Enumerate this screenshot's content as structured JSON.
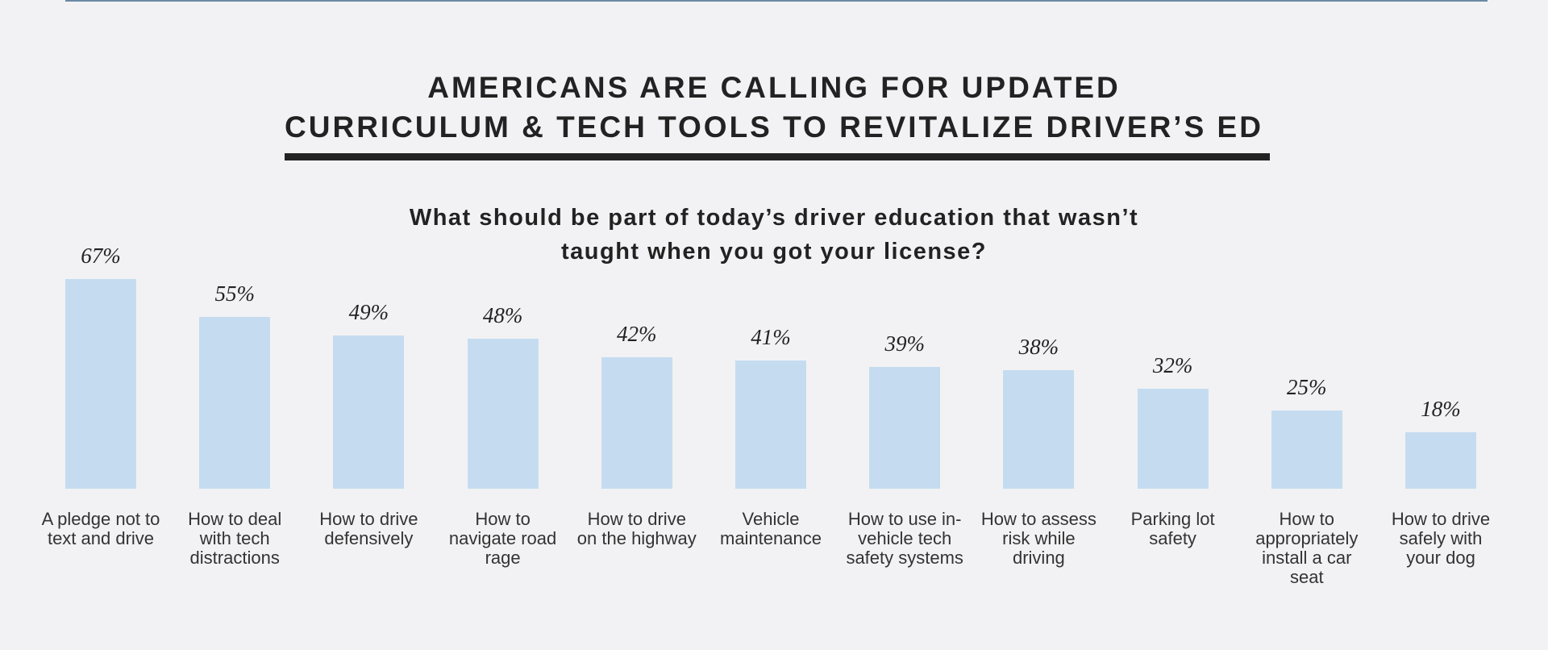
{
  "chart_data": {
    "type": "bar",
    "title": "AMERICANS ARE CALLING FOR UPDATED\nCURRICULUM & TECH TOOLS TO REVITALIZE DRIVER’S ED",
    "subtitle": "What should be part of today’s driver education that wasn’t\ntaught when you got your license?",
    "categories": [
      "A pledge not to text and drive",
      "How to deal with tech distractions",
      "How to drive defensively",
      "How to navigate road rage",
      "How to drive on the highway",
      "Vehicle maintenance",
      "How to use in-vehicle tech safety systems",
      "How to assess risk while driving",
      "Parking lot safety",
      "How to appropriately install a car seat",
      "How to drive safely with your dog"
    ],
    "values": [
      67,
      55,
      49,
      48,
      42,
      41,
      39,
      38,
      32,
      25,
      18
    ],
    "value_labels": [
      "67%",
      "55%",
      "49%",
      "48%",
      "42%",
      "41%",
      "39%",
      "38%",
      "32%",
      "25%",
      "18%"
    ],
    "color": "#c5dcf0"
  }
}
